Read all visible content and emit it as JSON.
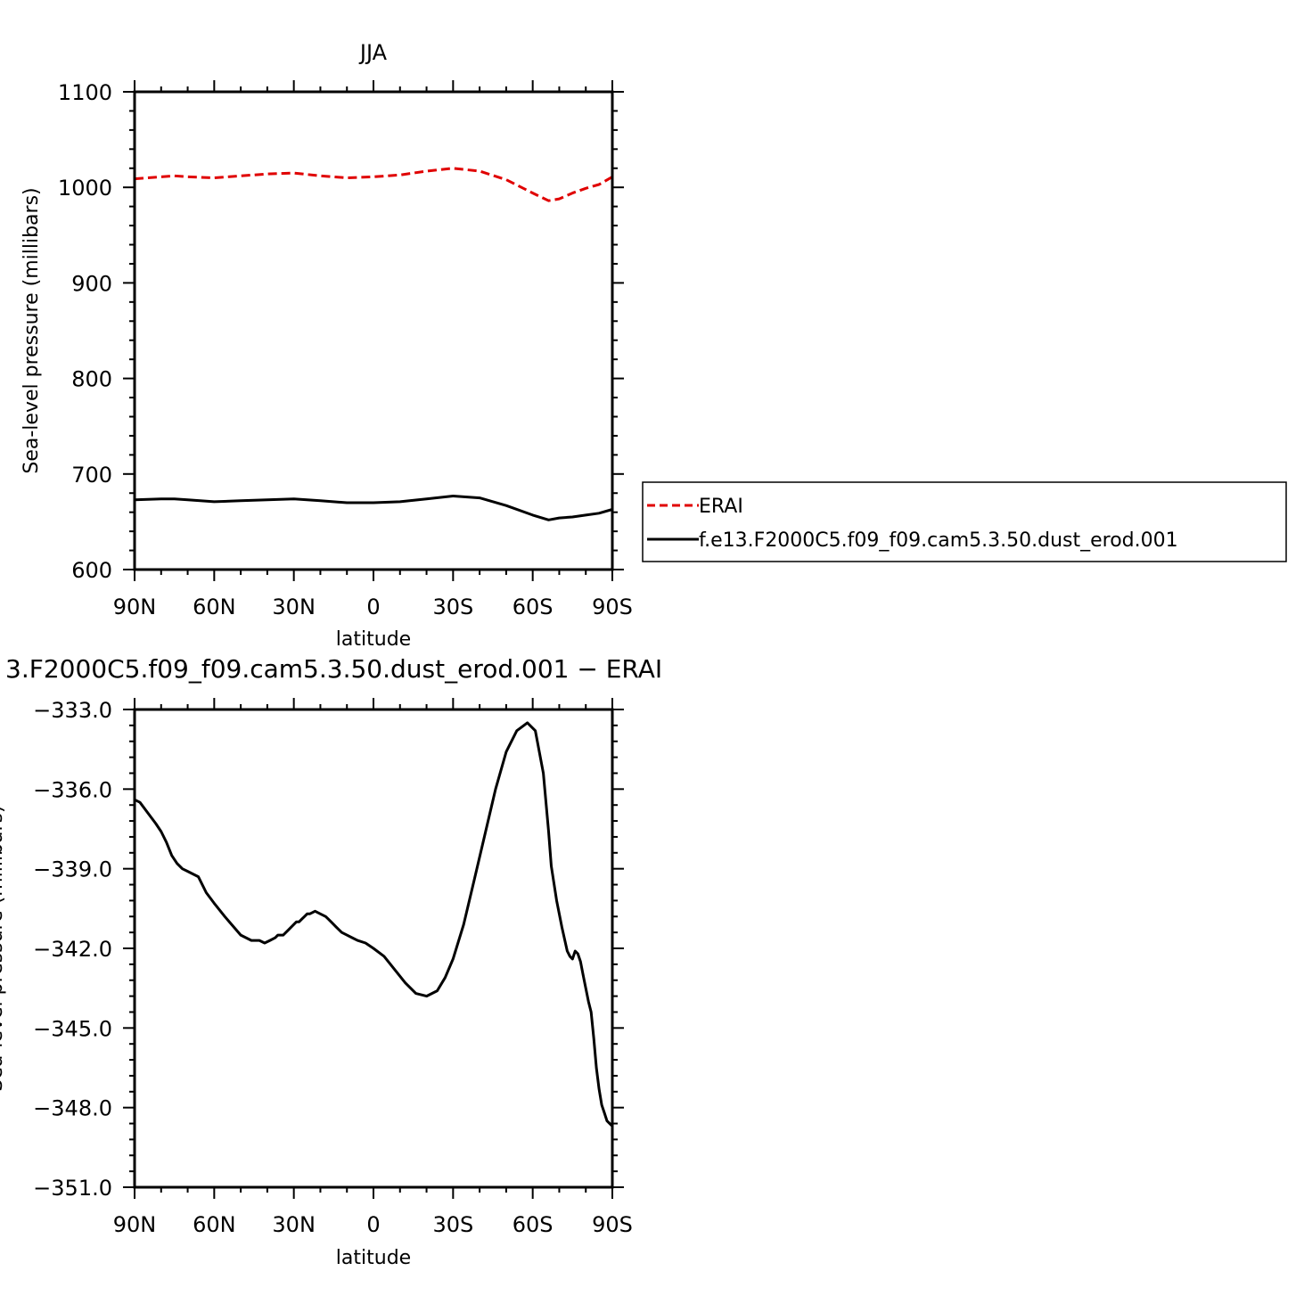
{
  "chart_data": [
    {
      "type": "line",
      "title": "JJA",
      "xlabel": "latitude",
      "ylabel": "Sea-level pressure (millibars)",
      "xlim": [
        -90,
        90
      ],
      "ylim": [
        600,
        1100
      ],
      "x_ticks": [
        -90,
        -60,
        -30,
        0,
        30,
        60,
        90
      ],
      "x_tick_labels": [
        "90N",
        "60N",
        "30N",
        "0",
        "30S",
        "60S",
        "90S"
      ],
      "y_ticks": [
        600,
        700,
        800,
        900,
        1000,
        1100
      ],
      "y_tick_labels": [
        "600",
        "700",
        "800",
        "900",
        "1000",
        "1100"
      ],
      "legend_position": "right",
      "series": [
        {
          "name": "ERAI",
          "color": "#e00000",
          "dashed": true,
          "x": [
            -90,
            -80,
            -75,
            -70,
            -60,
            -50,
            -40,
            -30,
            -20,
            -10,
            0,
            10,
            20,
            30,
            40,
            50,
            60,
            66,
            70,
            75,
            80,
            85,
            90
          ],
          "y": [
            1009,
            1011,
            1012,
            1011,
            1010,
            1012,
            1014,
            1015,
            1012,
            1010,
            1011,
            1013,
            1017,
            1020,
            1017,
            1008,
            994,
            986,
            988,
            994,
            999,
            1003,
            1011
          ]
        },
        {
          "name": "f.e13.F2000C5.f09_f09.cam5.3.50.dust_erod.001",
          "color": "#000000",
          "dashed": false,
          "x": [
            -90,
            -80,
            -75,
            -70,
            -60,
            -50,
            -40,
            -30,
            -20,
            -10,
            0,
            10,
            20,
            30,
            40,
            50,
            60,
            66,
            70,
            75,
            80,
            85,
            90
          ],
          "y": [
            673,
            674,
            674,
            673,
            671,
            672,
            673,
            674,
            672,
            670,
            670,
            671,
            674,
            677,
            675,
            667,
            657,
            652,
            654,
            655,
            657,
            659,
            663
          ]
        }
      ]
    },
    {
      "type": "line",
      "title": "3.F2000C5.f09_f09.cam5.3.50.dust_erod.001 − ERAI",
      "xlabel": "latitude",
      "ylabel": "Sea-level pressure (millibars)",
      "xlim": [
        -90,
        90
      ],
      "ylim": [
        -351,
        -333
      ],
      "x_ticks": [
        -90,
        -60,
        -30,
        0,
        30,
        60,
        90
      ],
      "x_tick_labels": [
        "90N",
        "60N",
        "30N",
        "0",
        "30S",
        "60S",
        "90S"
      ],
      "y_ticks": [
        -351,
        -348,
        -345,
        -342,
        -339,
        -336,
        -333
      ],
      "y_tick_labels": [
        "−351.0",
        "−348.0",
        "−345.0",
        "−342.0",
        "−339.0",
        "−336.0",
        "−333.0"
      ],
      "series": [
        {
          "color": "#000000",
          "dashed": false,
          "x": [
            -90,
            -88,
            -85,
            -82,
            -80,
            -78,
            -76,
            -74,
            -72,
            -70,
            -66,
            -63,
            -60,
            -56,
            -50,
            -46,
            -43,
            -41,
            -39,
            -37,
            -36,
            -34,
            -32,
            -29,
            -28,
            -27,
            -26,
            -25,
            -24,
            -22,
            -20,
            -18,
            -17,
            -16,
            -14,
            -12,
            -10,
            -8,
            -6,
            -3,
            0,
            4,
            8,
            12,
            16,
            20,
            24,
            27,
            30,
            34,
            38,
            42,
            46,
            50,
            54,
            58,
            61,
            64,
            66,
            67,
            69,
            71,
            73,
            74,
            75,
            76,
            77,
            78,
            79,
            80,
            81,
            82,
            83,
            84,
            85,
            86,
            87,
            88,
            89,
            90
          ],
          "y": [
            -336.4,
            -336.5,
            -336.9,
            -337.3,
            -337.6,
            -338.0,
            -338.5,
            -338.8,
            -339.0,
            -339.1,
            -339.3,
            -339.9,
            -340.3,
            -340.8,
            -341.5,
            -341.7,
            -341.7,
            -341.8,
            -341.7,
            -341.6,
            -341.5,
            -341.5,
            -341.3,
            -341.0,
            -341.0,
            -340.9,
            -340.8,
            -340.7,
            -340.7,
            -340.6,
            -340.7,
            -340.8,
            -340.9,
            -341.0,
            -341.2,
            -341.4,
            -341.5,
            -341.6,
            -341.7,
            -341.8,
            -342.0,
            -342.3,
            -342.8,
            -343.3,
            -343.7,
            -343.8,
            -343.6,
            -343.1,
            -342.4,
            -341.1,
            -339.4,
            -337.7,
            -336.0,
            -334.6,
            -333.8,
            -333.5,
            -333.8,
            -335.4,
            -337.6,
            -338.9,
            -340.2,
            -341.2,
            -342.1,
            -342.3,
            -342.4,
            -342.1,
            -342.2,
            -342.5,
            -343.0,
            -343.5,
            -344.0,
            -344.4,
            -345.4,
            -346.5,
            -347.3,
            -347.9,
            -348.2,
            -348.5,
            -348.6,
            -348.7
          ]
        }
      ]
    }
  ],
  "legend": {
    "items": [
      "ERAI",
      "f.e13.F2000C5.f09_f09.cam5.3.50.dust_erod.001"
    ]
  }
}
